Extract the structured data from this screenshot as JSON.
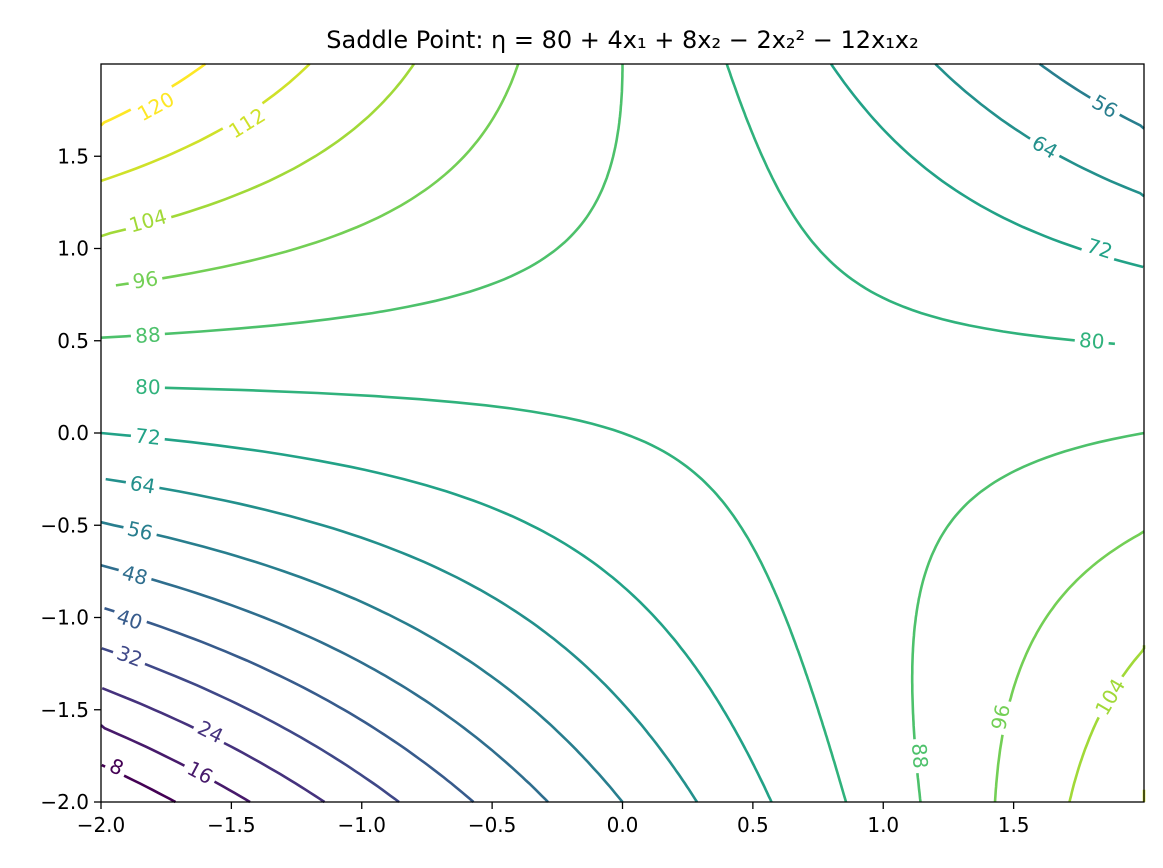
{
  "chart_data": {
    "type": "contour",
    "title": "Saddle Point: η = 80 + 4x₁ + 8x₂ − 2x₂² − 12x₁x₂",
    "xlabel": "",
    "ylabel": "",
    "xlim": [
      -2.0,
      2.0
    ],
    "ylim": [
      -2.0,
      2.0
    ],
    "grid": false,
    "xticks": [
      -2.0,
      -1.5,
      -1.0,
      -0.5,
      0.0,
      0.5,
      1.0,
      1.5
    ],
    "xtick_labels": [
      "−2.0",
      "−1.5",
      "−1.0",
      "−0.5",
      "0.0",
      "0.5",
      "1.0",
      "1.5"
    ],
    "yticks": [
      -2.0,
      -1.5,
      -1.0,
      -0.5,
      0.0,
      0.5,
      1.0,
      1.5
    ],
    "ytick_labels": [
      "−2.0",
      "−1.5",
      "−1.0",
      "−0.5",
      "0.0",
      "0.5",
      "1.0",
      "1.5"
    ],
    "function": {
      "constant": 80,
      "x1": 4,
      "x2": 8,
      "x2_squared": -2,
      "x1x2": -12
    },
    "levels": [
      8,
      16,
      24,
      32,
      40,
      48,
      56,
      64,
      72,
      80,
      88,
      96,
      104,
      112,
      120
    ],
    "level_colors": {
      "8": "#440154",
      "16": "#482475",
      "24": "#414487",
      "32": "#355f8d",
      "40": "#2a788e",
      "48": "#21918c",
      "56": "#22a884",
      "64": "#44bf70",
      "72": "#7ad151",
      "80": "#bddf26",
      "88": "#fde725"
    },
    "contour_labels": [
      {
        "level": 120,
        "text": "120",
        "x": -1.79,
        "y": 1.77
      },
      {
        "level": 112,
        "text": "112",
        "x": -1.44,
        "y": 1.68
      },
      {
        "level": 104,
        "text": "104",
        "x": -1.82,
        "y": 1.15
      },
      {
        "level": 96,
        "text": "96",
        "x": -1.83,
        "y": 0.83
      },
      {
        "level": 88,
        "text": "88",
        "x": -1.82,
        "y": 0.53
      },
      {
        "level": 80,
        "text": "80",
        "x": -1.82,
        "y": 0.25
      },
      {
        "level": 72,
        "text": "72",
        "x": -1.82,
        "y": -0.02
      },
      {
        "level": 64,
        "text": "64",
        "x": -1.84,
        "y": -0.28
      },
      {
        "level": 56,
        "text": "56",
        "x": -1.85,
        "y": -0.53
      },
      {
        "level": 48,
        "text": "48",
        "x": -1.87,
        "y": -0.77
      },
      {
        "level": 40,
        "text": "40",
        "x": -1.89,
        "y": -1.01
      },
      {
        "level": 32,
        "text": "32",
        "x": -1.89,
        "y": -1.21
      },
      {
        "level": 24,
        "text": "24",
        "x": -1.58,
        "y": -1.62
      },
      {
        "level": 16,
        "text": "16",
        "x": -1.62,
        "y": -1.84
      },
      {
        "level": 8,
        "text": "8",
        "x": -1.94,
        "y": -1.81
      },
      {
        "level": 56,
        "text": "56",
        "x": 1.85,
        "y": 1.77
      },
      {
        "level": 64,
        "text": "64",
        "x": 1.62,
        "y": 1.55
      },
      {
        "level": 72,
        "text": "72",
        "x": 1.83,
        "y": 1.0
      },
      {
        "level": 80,
        "text": "80",
        "x": 1.8,
        "y": 0.5
      },
      {
        "level": 88,
        "text": "88",
        "x": 1.14,
        "y": -1.75
      },
      {
        "level": 96,
        "text": "96",
        "x": 1.45,
        "y": -1.54
      },
      {
        "level": 104,
        "text": "104",
        "x": 1.87,
        "y": -1.43
      }
    ]
  }
}
